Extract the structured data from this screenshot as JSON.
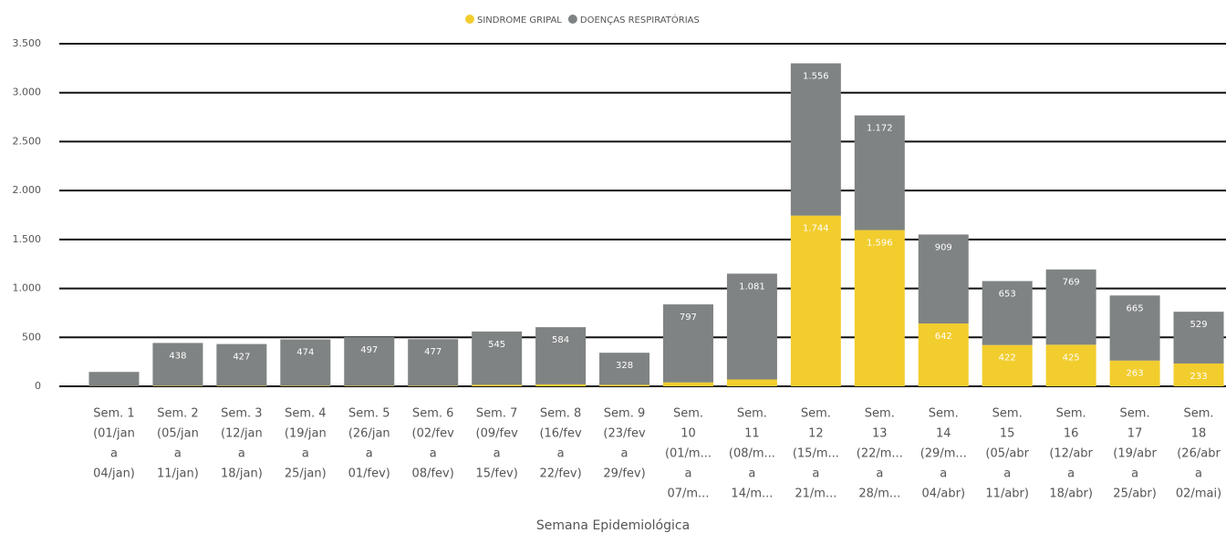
{
  "chart_data": {
    "type": "bar",
    "stacked": true,
    "x_label": "Semana Epidemiológica",
    "categories": [
      [
        "Sem. 1",
        "(01/jan",
        "a",
        "04/jan)"
      ],
      [
        "Sem. 2",
        "(05/jan",
        "a",
        "11/jan)"
      ],
      [
        "Sem. 3",
        "(12/jan",
        "a",
        "18/jan)"
      ],
      [
        "Sem. 4",
        "(19/jan",
        "a",
        "25/jan)"
      ],
      [
        "Sem. 5",
        "(26/jan",
        "a",
        "01/fev)"
      ],
      [
        "Sem. 6",
        "(02/fev",
        "a",
        "08/fev)"
      ],
      [
        "Sem. 7",
        "(09/fev",
        "a",
        "15/fev)"
      ],
      [
        "Sem. 8",
        "(16/fev",
        "a",
        "22/fev)"
      ],
      [
        "Sem. 9",
        "(23/fev",
        "a",
        "29/fev)"
      ],
      [
        "Sem.",
        "10",
        "(01/m...",
        "a",
        "07/m..."
      ],
      [
        "Sem.",
        "11",
        "(08/m...",
        "a",
        "14/m..."
      ],
      [
        "Sem.",
        "12",
        "(15/m...",
        "a",
        "21/m..."
      ],
      [
        "Sem.",
        "13",
        "(22/m...",
        "a",
        "28/m..."
      ],
      [
        "Sem.",
        "14",
        "(29/m...",
        "a",
        "04/abr)"
      ],
      [
        "Sem.",
        "15",
        "(05/abr",
        "a",
        "11/abr)"
      ],
      [
        "Sem.",
        "16",
        "(12/abr",
        "a",
        "18/abr)"
      ],
      [
        "Sem.",
        "17",
        "(19/abr",
        "a",
        "25/abr)"
      ],
      [
        "Sem.",
        "18",
        "(26/abr",
        "a",
        "02/mai)"
      ]
    ],
    "series": [
      {
        "name": "SINDROME GRIPAL",
        "color": "#f2cd2e",
        "values": [
          2,
          5,
          5,
          5,
          5,
          5,
          15,
          20,
          15,
          40,
          70,
          1744,
          1596,
          642,
          422,
          425,
          263,
          233
        ],
        "value_labels": [
          null,
          null,
          null,
          null,
          null,
          null,
          null,
          null,
          null,
          null,
          null,
          "1.744",
          "1.596",
          "642",
          "422",
          "425",
          "263",
          "233"
        ]
      },
      {
        "name": "DOENÇAS RESPIRATÓRIAS",
        "color": "#7f8383",
        "values": [
          145,
          438,
          427,
          474,
          497,
          477,
          545,
          584,
          328,
          797,
          1081,
          1556,
          1172,
          909,
          653,
          769,
          665,
          529
        ],
        "value_labels": [
          null,
          "438",
          "427",
          "474",
          "497",
          "477",
          "545",
          "584",
          "328",
          "797",
          "1.081",
          "1.556",
          "1.172",
          "909",
          "653",
          "769",
          "665",
          "529"
        ]
      }
    ],
    "ylim": [
      0,
      3500
    ],
    "yticks": [
      0,
      500,
      {
        "value": 1000,
        "label": "1.000"
      },
      {
        "value": 1500,
        "label": "1.500"
      },
      {
        "value": 2000,
        "label": "2.000"
      },
      {
        "value": 2500,
        "label": "2.500"
      },
      {
        "value": 3000,
        "label": "3.000"
      },
      {
        "value": 3500,
        "label": "3.500"
      }
    ],
    "grid": true,
    "legend": "top"
  }
}
